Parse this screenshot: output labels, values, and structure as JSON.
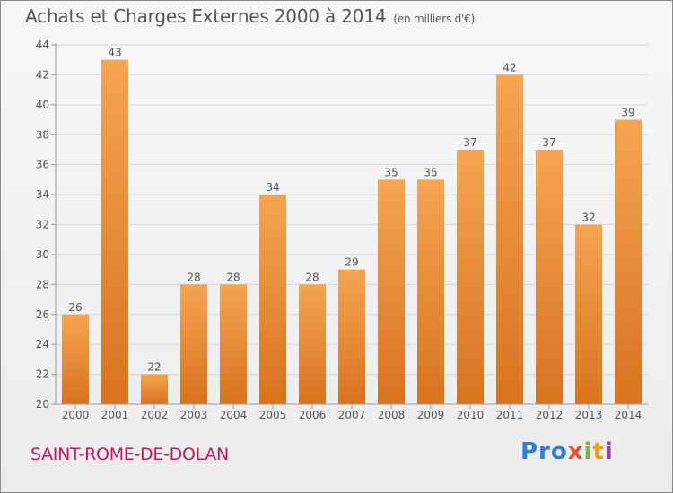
{
  "header": {
    "title": "Achats et Charges Externes 2000 à 2014",
    "unit": "(en milliers d'€)"
  },
  "footer": {
    "city": "SAINT-ROME-DE-DOLAN",
    "logo": [
      "Pro",
      "x",
      "i",
      "t",
      "i"
    ]
  },
  "colors": {
    "bar_top": "#f5a452",
    "bar_bottom": "#d8731f",
    "axis": "#9a9a9a",
    "grid": "#d6d6d6",
    "text": "#555555"
  },
  "chart_data": {
    "type": "bar",
    "categories": [
      "2000",
      "2001",
      "2002",
      "2003",
      "2004",
      "2005",
      "2006",
      "2007",
      "2008",
      "2009",
      "2010",
      "2011",
      "2012",
      "2013",
      "2014"
    ],
    "values": [
      26,
      43,
      22,
      28,
      28,
      34,
      28,
      29,
      35,
      35,
      37,
      42,
      37,
      32,
      39
    ],
    "ylim": [
      20,
      44
    ],
    "yticks": [
      20,
      22,
      24,
      26,
      28,
      30,
      32,
      34,
      36,
      38,
      40,
      42,
      44
    ],
    "title": "Achats et Charges Externes 2000 à 2014",
    "ylabel": "",
    "xlabel": "",
    "grid": true
  }
}
